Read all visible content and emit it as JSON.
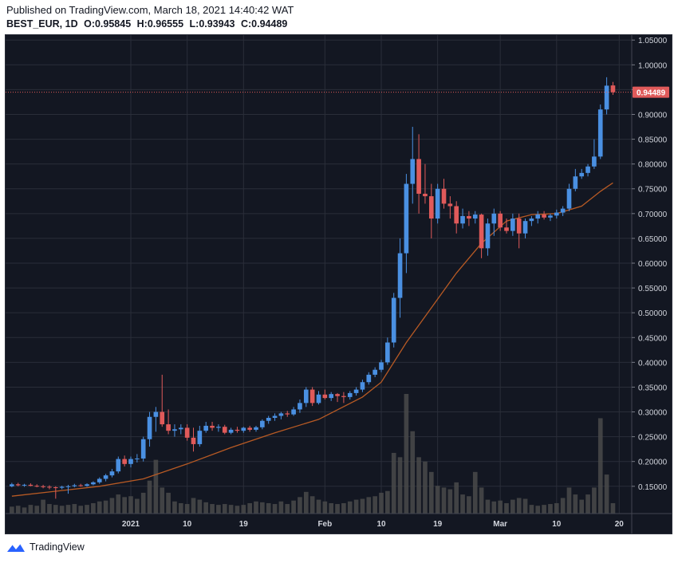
{
  "header": {
    "published": "Published on TradingView.com, March 18, 2021 14:40:42 WAT",
    "symbol": "BEST_EUR, 1D",
    "open": "O:0.95845",
    "high": "H:0.96555",
    "low": "L:0.93943",
    "close": "C:0.94489"
  },
  "footer": {
    "brand": "TradingView"
  },
  "colors": {
    "background": "#131722",
    "grid": "#2a2e39",
    "up": "#4a90e2",
    "down": "#e05a5a",
    "ma": "#b85a24",
    "volume": "#4a4a4a",
    "axis_text": "#d1d4dc"
  },
  "chart_data": {
    "type": "candlestick",
    "symbol": "BEST_EUR",
    "interval": "1D",
    "last_price": 0.94489,
    "last_price_label": "0.94489",
    "ylim": [
      0.095,
      1.06
    ],
    "y_ticks": [
      "0.15000",
      "0.20000",
      "0.25000",
      "0.30000",
      "0.35000",
      "0.40000",
      "0.45000",
      "0.50000",
      "0.55000",
      "0.60000",
      "0.65000",
      "0.70000",
      "0.75000",
      "0.80000",
      "0.85000",
      "0.90000",
      "0.95000",
      "1.00000",
      "1.05000"
    ],
    "x_ticks": [
      {
        "label": "2021",
        "date": "2021-01-01"
      },
      {
        "label": "10",
        "date": "2021-01-10"
      },
      {
        "label": "19",
        "date": "2021-01-19"
      },
      {
        "label": "Feb",
        "date": "2021-02-01"
      },
      {
        "label": "10",
        "date": "2021-02-10"
      },
      {
        "label": "19",
        "date": "2021-02-19"
      },
      {
        "label": "Mar",
        "date": "2021-03-01"
      },
      {
        "label": "10",
        "date": "2021-03-10"
      },
      {
        "label": "20",
        "date": "2021-03-20"
      }
    ],
    "x_range": [
      "2020-12-12",
      "2021-03-22"
    ],
    "candles": [
      {
        "d": "2020-12-13",
        "o": 0.15,
        "h": 0.157,
        "l": 0.148,
        "c": 0.154,
        "v": 8
      },
      {
        "d": "2020-12-14",
        "o": 0.154,
        "h": 0.157,
        "l": 0.15,
        "c": 0.152,
        "v": 9
      },
      {
        "d": "2020-12-15",
        "o": 0.152,
        "h": 0.155,
        "l": 0.149,
        "c": 0.153,
        "v": 7
      },
      {
        "d": "2020-12-16",
        "o": 0.153,
        "h": 0.156,
        "l": 0.15,
        "c": 0.151,
        "v": 10
      },
      {
        "d": "2020-12-17",
        "o": 0.151,
        "h": 0.154,
        "l": 0.148,
        "c": 0.15,
        "v": 9
      },
      {
        "d": "2020-12-18",
        "o": 0.15,
        "h": 0.153,
        "l": 0.146,
        "c": 0.149,
        "v": 16
      },
      {
        "d": "2020-12-19",
        "o": 0.149,
        "h": 0.152,
        "l": 0.144,
        "c": 0.148,
        "v": 11
      },
      {
        "d": "2020-12-20",
        "o": 0.148,
        "h": 0.15,
        "l": 0.125,
        "c": 0.147,
        "v": 10
      },
      {
        "d": "2020-12-21",
        "o": 0.147,
        "h": 0.151,
        "l": 0.144,
        "c": 0.149,
        "v": 9
      },
      {
        "d": "2020-12-22",
        "o": 0.149,
        "h": 0.153,
        "l": 0.135,
        "c": 0.15,
        "v": 10
      },
      {
        "d": "2020-12-23",
        "o": 0.15,
        "h": 0.155,
        "l": 0.148,
        "c": 0.152,
        "v": 11
      },
      {
        "d": "2020-12-24",
        "o": 0.152,
        "h": 0.155,
        "l": 0.149,
        "c": 0.151,
        "v": 9
      },
      {
        "d": "2020-12-25",
        "o": 0.151,
        "h": 0.156,
        "l": 0.149,
        "c": 0.154,
        "v": 10
      },
      {
        "d": "2020-12-26",
        "o": 0.154,
        "h": 0.16,
        "l": 0.152,
        "c": 0.158,
        "v": 12
      },
      {
        "d": "2020-12-27",
        "o": 0.158,
        "h": 0.168,
        "l": 0.155,
        "c": 0.165,
        "v": 14
      },
      {
        "d": "2020-12-28",
        "o": 0.165,
        "h": 0.175,
        "l": 0.16,
        "c": 0.172,
        "v": 15
      },
      {
        "d": "2020-12-29",
        "o": 0.172,
        "h": 0.185,
        "l": 0.168,
        "c": 0.18,
        "v": 18
      },
      {
        "d": "2020-12-30",
        "o": 0.18,
        "h": 0.21,
        "l": 0.176,
        "c": 0.205,
        "v": 22
      },
      {
        "d": "2020-12-31",
        "o": 0.205,
        "h": 0.212,
        "l": 0.19,
        "c": 0.195,
        "v": 19
      },
      {
        "d": "2021-01-01",
        "o": 0.195,
        "h": 0.21,
        "l": 0.188,
        "c": 0.205,
        "v": 20
      },
      {
        "d": "2021-01-02",
        "o": 0.205,
        "h": 0.215,
        "l": 0.198,
        "c": 0.206,
        "v": 17
      },
      {
        "d": "2021-01-03",
        "o": 0.206,
        "h": 0.25,
        "l": 0.2,
        "c": 0.245,
        "v": 24
      },
      {
        "d": "2021-01-04",
        "o": 0.245,
        "h": 0.3,
        "l": 0.23,
        "c": 0.29,
        "v": 38
      },
      {
        "d": "2021-01-05",
        "o": 0.29,
        "h": 0.31,
        "l": 0.26,
        "c": 0.3,
        "v": 62
      },
      {
        "d": "2021-01-06",
        "o": 0.3,
        "h": 0.375,
        "l": 0.27,
        "c": 0.275,
        "v": 30
      },
      {
        "d": "2021-01-07",
        "o": 0.275,
        "h": 0.305,
        "l": 0.255,
        "c": 0.262,
        "v": 24
      },
      {
        "d": "2021-01-08",
        "o": 0.262,
        "h": 0.275,
        "l": 0.25,
        "c": 0.265,
        "v": 14
      },
      {
        "d": "2021-01-09",
        "o": 0.265,
        "h": 0.275,
        "l": 0.255,
        "c": 0.268,
        "v": 12
      },
      {
        "d": "2021-01-10",
        "o": 0.268,
        "h": 0.275,
        "l": 0.242,
        "c": 0.248,
        "v": 11
      },
      {
        "d": "2021-01-11",
        "o": 0.248,
        "h": 0.268,
        "l": 0.22,
        "c": 0.235,
        "v": 18
      },
      {
        "d": "2021-01-12",
        "o": 0.235,
        "h": 0.272,
        "l": 0.23,
        "c": 0.262,
        "v": 16
      },
      {
        "d": "2021-01-13",
        "o": 0.262,
        "h": 0.28,
        "l": 0.258,
        "c": 0.272,
        "v": 13
      },
      {
        "d": "2021-01-14",
        "o": 0.272,
        "h": 0.28,
        "l": 0.262,
        "c": 0.268,
        "v": 11
      },
      {
        "d": "2021-01-15",
        "o": 0.268,
        "h": 0.275,
        "l": 0.26,
        "c": 0.27,
        "v": 10
      },
      {
        "d": "2021-01-16",
        "o": 0.27,
        "h": 0.274,
        "l": 0.255,
        "c": 0.258,
        "v": 11
      },
      {
        "d": "2021-01-17",
        "o": 0.258,
        "h": 0.268,
        "l": 0.255,
        "c": 0.264,
        "v": 10
      },
      {
        "d": "2021-01-18",
        "o": 0.264,
        "h": 0.27,
        "l": 0.258,
        "c": 0.262,
        "v": 9
      },
      {
        "d": "2021-01-19",
        "o": 0.262,
        "h": 0.27,
        "l": 0.258,
        "c": 0.268,
        "v": 10
      },
      {
        "d": "2021-01-20",
        "o": 0.268,
        "h": 0.272,
        "l": 0.26,
        "c": 0.264,
        "v": 12
      },
      {
        "d": "2021-01-21",
        "o": 0.264,
        "h": 0.272,
        "l": 0.26,
        "c": 0.269,
        "v": 14
      },
      {
        "d": "2021-01-22",
        "o": 0.269,
        "h": 0.285,
        "l": 0.265,
        "c": 0.282,
        "v": 13
      },
      {
        "d": "2021-01-23",
        "o": 0.282,
        "h": 0.292,
        "l": 0.276,
        "c": 0.288,
        "v": 12
      },
      {
        "d": "2021-01-24",
        "o": 0.288,
        "h": 0.297,
        "l": 0.282,
        "c": 0.292,
        "v": 11
      },
      {
        "d": "2021-01-25",
        "o": 0.292,
        "h": 0.3,
        "l": 0.285,
        "c": 0.297,
        "v": 14
      },
      {
        "d": "2021-01-26",
        "o": 0.297,
        "h": 0.302,
        "l": 0.29,
        "c": 0.295,
        "v": 11
      },
      {
        "d": "2021-01-27",
        "o": 0.295,
        "h": 0.31,
        "l": 0.292,
        "c": 0.305,
        "v": 15
      },
      {
        "d": "2021-01-28",
        "o": 0.305,
        "h": 0.325,
        "l": 0.298,
        "c": 0.318,
        "v": 19
      },
      {
        "d": "2021-01-29",
        "o": 0.318,
        "h": 0.35,
        "l": 0.31,
        "c": 0.345,
        "v": 25
      },
      {
        "d": "2021-01-30",
        "o": 0.345,
        "h": 0.35,
        "l": 0.312,
        "c": 0.318,
        "v": 20
      },
      {
        "d": "2021-01-31",
        "o": 0.318,
        "h": 0.342,
        "l": 0.315,
        "c": 0.335,
        "v": 16
      },
      {
        "d": "2021-02-01",
        "o": 0.335,
        "h": 0.345,
        "l": 0.325,
        "c": 0.328,
        "v": 14
      },
      {
        "d": "2021-02-02",
        "o": 0.328,
        "h": 0.34,
        "l": 0.322,
        "c": 0.336,
        "v": 12
      },
      {
        "d": "2021-02-03",
        "o": 0.336,
        "h": 0.338,
        "l": 0.32,
        "c": 0.332,
        "v": 11
      },
      {
        "d": "2021-02-04",
        "o": 0.332,
        "h": 0.34,
        "l": 0.318,
        "c": 0.33,
        "v": 12
      },
      {
        "d": "2021-02-05",
        "o": 0.33,
        "h": 0.342,
        "l": 0.325,
        "c": 0.338,
        "v": 14
      },
      {
        "d": "2021-02-06",
        "o": 0.338,
        "h": 0.35,
        "l": 0.333,
        "c": 0.345,
        "v": 16
      },
      {
        "d": "2021-02-07",
        "o": 0.345,
        "h": 0.365,
        "l": 0.34,
        "c": 0.36,
        "v": 17
      },
      {
        "d": "2021-02-08",
        "o": 0.36,
        "h": 0.38,
        "l": 0.355,
        "c": 0.375,
        "v": 19
      },
      {
        "d": "2021-02-09",
        "o": 0.375,
        "h": 0.39,
        "l": 0.37,
        "c": 0.385,
        "v": 20
      },
      {
        "d": "2021-02-10",
        "o": 0.385,
        "h": 0.405,
        "l": 0.38,
        "c": 0.4,
        "v": 24
      },
      {
        "d": "2021-02-11",
        "o": 0.4,
        "h": 0.45,
        "l": 0.395,
        "c": 0.44,
        "v": 26
      },
      {
        "d": "2021-02-12",
        "o": 0.44,
        "h": 0.54,
        "l": 0.43,
        "c": 0.53,
        "v": 70
      },
      {
        "d": "2021-02-13",
        "o": 0.53,
        "h": 0.65,
        "l": 0.49,
        "c": 0.62,
        "v": 65
      },
      {
        "d": "2021-02-14",
        "o": 0.62,
        "h": 0.78,
        "l": 0.58,
        "c": 0.76,
        "v": 138
      },
      {
        "d": "2021-02-15",
        "o": 0.76,
        "h": 0.875,
        "l": 0.72,
        "c": 0.81,
        "v": 95
      },
      {
        "d": "2021-02-16",
        "o": 0.81,
        "h": 0.86,
        "l": 0.7,
        "c": 0.74,
        "v": 65
      },
      {
        "d": "2021-02-17",
        "o": 0.74,
        "h": 0.8,
        "l": 0.72,
        "c": 0.735,
        "v": 60
      },
      {
        "d": "2021-02-18",
        "o": 0.735,
        "h": 0.76,
        "l": 0.65,
        "c": 0.69,
        "v": 48
      },
      {
        "d": "2021-02-19",
        "o": 0.69,
        "h": 0.76,
        "l": 0.68,
        "c": 0.75,
        "v": 32
      },
      {
        "d": "2021-02-20",
        "o": 0.75,
        "h": 0.77,
        "l": 0.71,
        "c": 0.72,
        "v": 30
      },
      {
        "d": "2021-02-21",
        "o": 0.72,
        "h": 0.735,
        "l": 0.69,
        "c": 0.715,
        "v": 28
      },
      {
        "d": "2021-02-22",
        "o": 0.715,
        "h": 0.725,
        "l": 0.66,
        "c": 0.68,
        "v": 36
      },
      {
        "d": "2021-02-23",
        "o": 0.68,
        "h": 0.71,
        "l": 0.67,
        "c": 0.695,
        "v": 22
      },
      {
        "d": "2021-02-24",
        "o": 0.695,
        "h": 0.705,
        "l": 0.675,
        "c": 0.69,
        "v": 20
      },
      {
        "d": "2021-02-25",
        "o": 0.69,
        "h": 0.705,
        "l": 0.68,
        "c": 0.698,
        "v": 48
      },
      {
        "d": "2021-02-26",
        "o": 0.698,
        "h": 0.7,
        "l": 0.61,
        "c": 0.63,
        "v": 30
      },
      {
        "d": "2021-02-27",
        "o": 0.63,
        "h": 0.69,
        "l": 0.615,
        "c": 0.68,
        "v": 16
      },
      {
        "d": "2021-02-28",
        "o": 0.68,
        "h": 0.71,
        "l": 0.655,
        "c": 0.7,
        "v": 14
      },
      {
        "d": "2021-03-01",
        "o": 0.7,
        "h": 0.705,
        "l": 0.665,
        "c": 0.672,
        "v": 15
      },
      {
        "d": "2021-03-02",
        "o": 0.672,
        "h": 0.69,
        "l": 0.66,
        "c": 0.665,
        "v": 12
      },
      {
        "d": "2021-03-03",
        "o": 0.665,
        "h": 0.7,
        "l": 0.655,
        "c": 0.69,
        "v": 16
      },
      {
        "d": "2021-03-04",
        "o": 0.69,
        "h": 0.7,
        "l": 0.63,
        "c": 0.66,
        "v": 18
      },
      {
        "d": "2021-03-05",
        "o": 0.66,
        "h": 0.69,
        "l": 0.65,
        "c": 0.685,
        "v": 17
      },
      {
        "d": "2021-03-06",
        "o": 0.685,
        "h": 0.695,
        "l": 0.675,
        "c": 0.69,
        "v": 10
      },
      {
        "d": "2021-03-07",
        "o": 0.69,
        "h": 0.705,
        "l": 0.68,
        "c": 0.698,
        "v": 9
      },
      {
        "d": "2021-03-08",
        "o": 0.698,
        "h": 0.705,
        "l": 0.688,
        "c": 0.692,
        "v": 10
      },
      {
        "d": "2021-03-09",
        "o": 0.692,
        "h": 0.7,
        "l": 0.685,
        "c": 0.696,
        "v": 11
      },
      {
        "d": "2021-03-10",
        "o": 0.696,
        "h": 0.708,
        "l": 0.69,
        "c": 0.702,
        "v": 12
      },
      {
        "d": "2021-03-11",
        "o": 0.702,
        "h": 0.715,
        "l": 0.695,
        "c": 0.71,
        "v": 18
      },
      {
        "d": "2021-03-12",
        "o": 0.71,
        "h": 0.76,
        "l": 0.705,
        "c": 0.75,
        "v": 30
      },
      {
        "d": "2021-03-13",
        "o": 0.75,
        "h": 0.79,
        "l": 0.745,
        "c": 0.775,
        "v": 22
      },
      {
        "d": "2021-03-14",
        "o": 0.775,
        "h": 0.79,
        "l": 0.77,
        "c": 0.782,
        "v": 16
      },
      {
        "d": "2021-03-15",
        "o": 0.782,
        "h": 0.8,
        "l": 0.775,
        "c": 0.795,
        "v": 22
      },
      {
        "d": "2021-03-16",
        "o": 0.795,
        "h": 0.85,
        "l": 0.79,
        "c": 0.815,
        "v": 30
      },
      {
        "d": "2021-03-17",
        "o": 0.815,
        "h": 0.92,
        "l": 0.81,
        "c": 0.91,
        "v": 110
      },
      {
        "d": "2021-03-18",
        "o": 0.91,
        "h": 0.975,
        "l": 0.9,
        "c": 0.958,
        "v": 45
      },
      {
        "d": "2021-03-19",
        "o": 0.95845,
        "h": 0.96555,
        "l": 0.93943,
        "c": 0.94489,
        "v": 12
      }
    ],
    "ma": [
      [
        "2020-12-13",
        0.13
      ],
      [
        "2020-12-20",
        0.14
      ],
      [
        "2020-12-27",
        0.15
      ],
      [
        "2021-01-03",
        0.165
      ],
      [
        "2021-01-10",
        0.195
      ],
      [
        "2021-01-17",
        0.228
      ],
      [
        "2021-01-24",
        0.258
      ],
      [
        "2021-01-31",
        0.285
      ],
      [
        "2021-02-07",
        0.33
      ],
      [
        "2021-02-10",
        0.36
      ],
      [
        "2021-02-14",
        0.44
      ],
      [
        "2021-02-18",
        0.51
      ],
      [
        "2021-02-22",
        0.58
      ],
      [
        "2021-02-26",
        0.64
      ],
      [
        "2021-03-02",
        0.685
      ],
      [
        "2021-03-06",
        0.698
      ],
      [
        "2021-03-10",
        0.7
      ],
      [
        "2021-03-14",
        0.715
      ],
      [
        "2021-03-17",
        0.745
      ],
      [
        "2021-03-19",
        0.762
      ]
    ]
  }
}
